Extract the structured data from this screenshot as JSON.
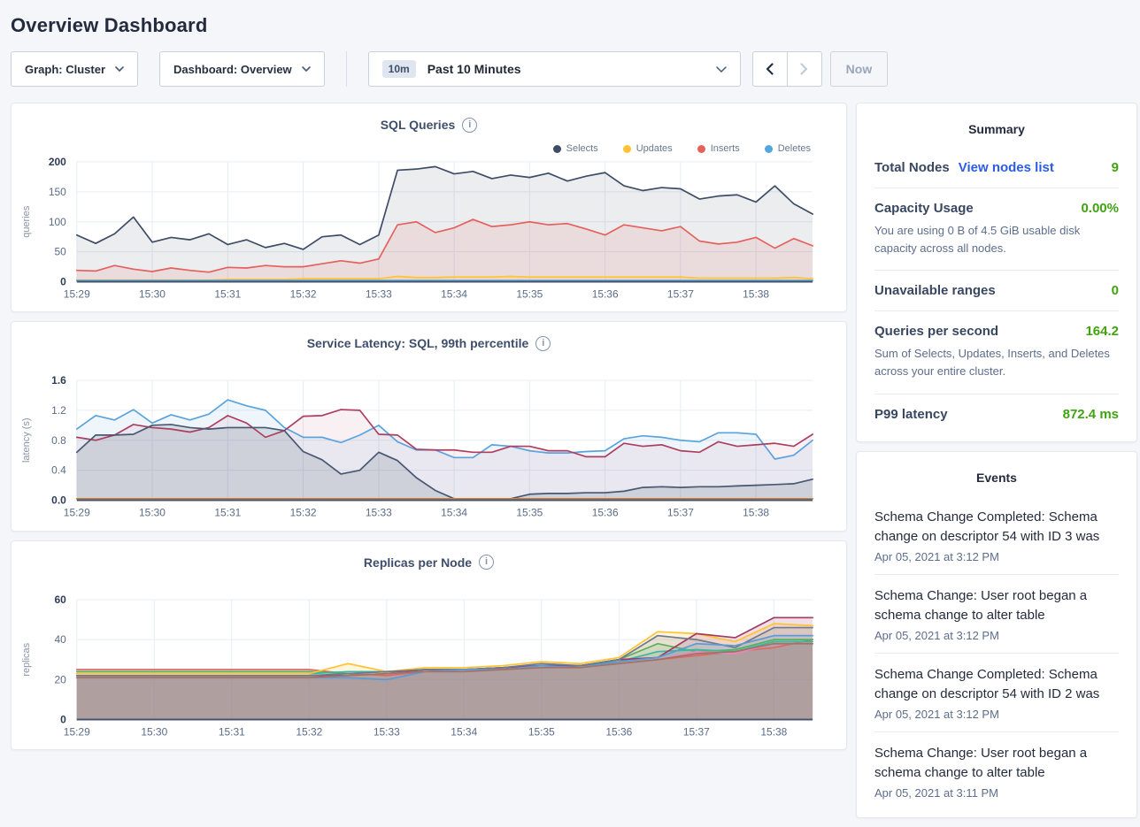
{
  "page_title": "Overview Dashboard",
  "ui_colors": {
    "green": "#3fa40e",
    "link_blue": "#2b5de0",
    "panel_border": "#e4e9f1",
    "page_background": "#f4f6fa"
  },
  "toolbar": {
    "graph_dropdown": "Graph: Cluster",
    "dashboard_dropdown": "Dashboard: Overview",
    "timescale_badge": "10m",
    "timescale_label": "Past 10 Minutes",
    "now_button": "Now"
  },
  "summary": {
    "title": "Summary",
    "total_nodes": {
      "label": "Total Nodes",
      "link": "View nodes list",
      "value": "9"
    },
    "capacity": {
      "label": "Capacity Usage",
      "value": "0.00%",
      "sub": "You are using 0 B of 4.5 GiB usable disk capacity across all nodes."
    },
    "unavailable": {
      "label": "Unavailable ranges",
      "value": "0"
    },
    "qps": {
      "label": "Queries per second",
      "value": "164.2",
      "sub": "Sum of Selects, Updates, Inserts, and Deletes across your entire cluster."
    },
    "p99": {
      "label": "P99 latency",
      "value": "872.4 ms"
    }
  },
  "events": {
    "title": "Events",
    "items": [
      {
        "text": "Schema Change Completed: Schema change on descriptor 54 with ID 3 was",
        "time": "Apr 05, 2021 at 3:12 PM"
      },
      {
        "text": "Schema Change: User root began a schema change to alter table",
        "time": "Apr 05, 2021 at 3:12 PM"
      },
      {
        "text": "Schema Change Completed: Schema change on descriptor 54 with ID 2 was",
        "time": "Apr 05, 2021 at 3:12 PM"
      },
      {
        "text": "Schema Change: User root began a schema change to alter table",
        "time": "Apr 05, 2021 at 3:11 PM"
      }
    ]
  },
  "chart_data": [
    {
      "type": "area",
      "title": "SQL Queries",
      "ylabel": "queries",
      "ylim": [
        0,
        200
      ],
      "yticks": [
        0,
        50,
        100,
        150,
        200
      ],
      "yticklabels": [
        "0",
        "50",
        "100",
        "150",
        "200"
      ],
      "xticklabels": [
        "15:29",
        "15:30",
        "15:31",
        "15:32",
        "15:33",
        "15:34",
        "15:35",
        "15:36",
        "15:37",
        "15:38"
      ],
      "tick_step": 4,
      "grid": true,
      "legend_position": "top-right",
      "series": [
        {
          "name": "Selects",
          "color": "#3e4c66",
          "fill_opacity": 0.1,
          "values": [
            78,
            64,
            80,
            108,
            66,
            74,
            70,
            80,
            62,
            70,
            57,
            64,
            54,
            75,
            78,
            62,
            78,
            186,
            188,
            192,
            180,
            184,
            172,
            178,
            174,
            181,
            168,
            176,
            182,
            160,
            152,
            157,
            155,
            138,
            143,
            145,
            133,
            160,
            130,
            113
          ]
        },
        {
          "name": "Updates",
          "color": "#ffc333",
          "fill_opacity": 0.15,
          "values": [
            3,
            3,
            3,
            3,
            3,
            3,
            3,
            3,
            4,
            4,
            4,
            4,
            5,
            5,
            5,
            5,
            5,
            9,
            7,
            7,
            8,
            8,
            8,
            9,
            8,
            8,
            8,
            8,
            8,
            8,
            8,
            8,
            8,
            6,
            6,
            6,
            6,
            6,
            7,
            5
          ]
        },
        {
          "name": "Inserts",
          "color": "#e5615e",
          "fill_opacity": 0.12,
          "values": [
            19,
            18,
            27,
            21,
            17,
            23,
            19,
            16,
            24,
            23,
            27,
            25,
            25,
            30,
            35,
            31,
            38,
            95,
            100,
            82,
            90,
            104,
            92,
            95,
            100,
            95,
            97,
            88,
            78,
            95,
            90,
            85,
            92,
            68,
            63,
            66,
            74,
            56,
            72,
            60
          ]
        },
        {
          "name": "Deletes",
          "color": "#56a5dc",
          "fill_opacity": 0.15,
          "values": [
            2,
            2,
            2,
            2,
            2,
            2,
            2,
            2,
            2,
            2,
            2,
            2,
            2,
            2,
            2,
            2,
            2,
            2,
            2,
            2,
            2,
            2,
            2,
            2,
            2,
            2,
            2,
            2,
            2,
            2,
            2,
            2,
            2,
            2,
            2,
            2,
            2,
            2,
            2,
            2
          ]
        }
      ]
    },
    {
      "type": "area",
      "title": "Service Latency: SQL, 99th percentile",
      "ylabel": "latency (s)",
      "ylim": [
        0,
        1.6
      ],
      "yticks": [
        0,
        0.4,
        0.8,
        1.2,
        1.6
      ],
      "yticklabels": [
        "0.0",
        "0.4",
        "0.8",
        "1.2",
        "1.6"
      ],
      "xticklabels": [
        "15:29",
        "15:30",
        "15:31",
        "15:32",
        "15:33",
        "15:34",
        "15:35",
        "15:36",
        "15:37",
        "15:38"
      ],
      "tick_step": 4,
      "grid": true,
      "series": [
        {
          "color": "#5ba3dc",
          "fill_opacity": 0.1,
          "values": [
            0.95,
            1.13,
            1.07,
            1.21,
            1.03,
            1.14,
            1.07,
            1.15,
            1.34,
            1.26,
            1.2,
            0.97,
            0.84,
            0.84,
            0.77,
            0.87,
            1.0,
            0.78,
            0.67,
            0.67,
            0.57,
            0.57,
            0.74,
            0.72,
            0.66,
            0.63,
            0.63,
            0.65,
            0.66,
            0.82,
            0.86,
            0.84,
            0.8,
            0.78,
            0.9,
            0.9,
            0.88,
            0.55,
            0.6,
            0.8
          ]
        },
        {
          "color": "#ad3e60",
          "fill_opacity": 0.08,
          "values": [
            0.84,
            0.8,
            0.87,
            1.01,
            0.97,
            0.95,
            0.91,
            0.97,
            1.13,
            1.03,
            0.84,
            0.93,
            1.12,
            1.13,
            1.21,
            1.2,
            0.88,
            0.87,
            0.68,
            0.67,
            0.67,
            0.64,
            0.64,
            0.72,
            0.72,
            0.66,
            0.66,
            0.58,
            0.58,
            0.76,
            0.72,
            0.74,
            0.66,
            0.64,
            0.78,
            0.72,
            0.74,
            0.76,
            0.72,
            0.88
          ]
        },
        {
          "color": "#475872",
          "fill_opacity": 0.16,
          "values": [
            0.64,
            0.87,
            0.87,
            0.88,
            1.0,
            1.01,
            0.97,
            0.95,
            0.97,
            0.97,
            0.97,
            0.93,
            0.65,
            0.54,
            0.35,
            0.4,
            0.64,
            0.53,
            0.3,
            0.13,
            0.02,
            0.02,
            0.02,
            0.02,
            0.08,
            0.09,
            0.09,
            0.1,
            0.1,
            0.12,
            0.17,
            0.18,
            0.17,
            0.18,
            0.18,
            0.19,
            0.2,
            0.21,
            0.22,
            0.28
          ]
        },
        {
          "color": "#c9823e",
          "fill_opacity": 0,
          "values": [
            0.02,
            0.02,
            0.02,
            0.02,
            0.02,
            0.02,
            0.02,
            0.02,
            0.02,
            0.02,
            0.02,
            0.02,
            0.02,
            0.02,
            0.02,
            0.02,
            0.02,
            0.02,
            0.02,
            0.02,
            0.02,
            0.02,
            0.02,
            0.02,
            0.02,
            0.02,
            0.02,
            0.02,
            0.02,
            0.02,
            0.02,
            0.02,
            0.02,
            0.02,
            0.02,
            0.02,
            0.02,
            0.02,
            0.02,
            0.02
          ]
        }
      ]
    },
    {
      "type": "area",
      "title": "Replicas per Node",
      "ylabel": "replicas",
      "ylim": [
        0,
        60
      ],
      "yticks": [
        0,
        20,
        40,
        60
      ],
      "yticklabels": [
        "0",
        "20",
        "40",
        "60"
      ],
      "xticklabels": [
        "15:29",
        "15:30",
        "15:31",
        "15:32",
        "15:33",
        "15:34",
        "15:35",
        "15:36",
        "15:37",
        "15:38"
      ],
      "tick_step": 2,
      "grid": true,
      "series": [
        {
          "color": "#df6864",
          "fill_opacity": 0.16,
          "values": [
            25,
            25,
            25,
            25,
            25,
            25,
            25,
            23,
            22,
            24,
            24,
            25,
            26,
            27,
            28,
            30,
            32,
            34,
            36,
            40
          ]
        },
        {
          "color": "#55b15f",
          "fill_opacity": 0.16,
          "values": [
            24,
            24,
            24,
            24,
            24,
            24,
            24,
            23,
            24,
            25,
            25,
            26,
            27,
            27,
            30,
            38,
            34,
            35,
            40,
            40
          ]
        },
        {
          "color": "#38b89e",
          "fill_opacity": 0.16,
          "values": [
            23,
            23,
            23,
            23,
            23,
            23,
            23,
            24,
            24,
            25,
            25,
            26,
            27,
            27,
            29,
            34,
            35,
            34,
            39,
            39
          ]
        },
        {
          "color": "#ffc333",
          "fill_opacity": 0.16,
          "values": [
            23,
            23,
            23,
            23,
            23,
            23,
            23,
            28,
            24,
            26,
            26,
            27,
            29,
            28,
            31,
            44,
            43,
            39,
            48,
            47
          ]
        },
        {
          "color": "#a23a68",
          "fill_opacity": 0.16,
          "values": [
            22,
            22,
            22,
            22,
            22,
            22,
            22,
            22,
            23,
            25,
            25,
            26,
            27,
            27,
            30,
            31,
            43,
            41,
            51,
            51
          ]
        },
        {
          "color": "#6f7b8d",
          "fill_opacity": 0.16,
          "values": [
            22,
            22,
            22,
            22,
            22,
            22,
            22,
            23,
            24,
            25,
            25,
            26,
            28,
            27,
            30,
            42,
            40,
            36,
            46,
            46
          ]
        },
        {
          "color": "#5b9bd5",
          "fill_opacity": 0.16,
          "values": [
            21,
            21,
            21,
            21,
            21,
            21,
            21,
            21,
            20,
            24,
            25,
            25,
            27,
            26,
            29,
            31,
            38,
            37,
            42,
            42
          ]
        },
        {
          "color": "#ea86bb",
          "fill_opacity": 0.16,
          "values": [
            21,
            21,
            21,
            21,
            21,
            21,
            21,
            22,
            23,
            24,
            24,
            25,
            26,
            26,
            28,
            30,
            34,
            33,
            38,
            38
          ]
        },
        {
          "color": "#9d7467",
          "fill_opacity": 0.16,
          "values": [
            21,
            21,
            21,
            21,
            21,
            21,
            21,
            22,
            23,
            24,
            24,
            25,
            26,
            26,
            28,
            30,
            33,
            34,
            38,
            38
          ]
        }
      ]
    }
  ]
}
